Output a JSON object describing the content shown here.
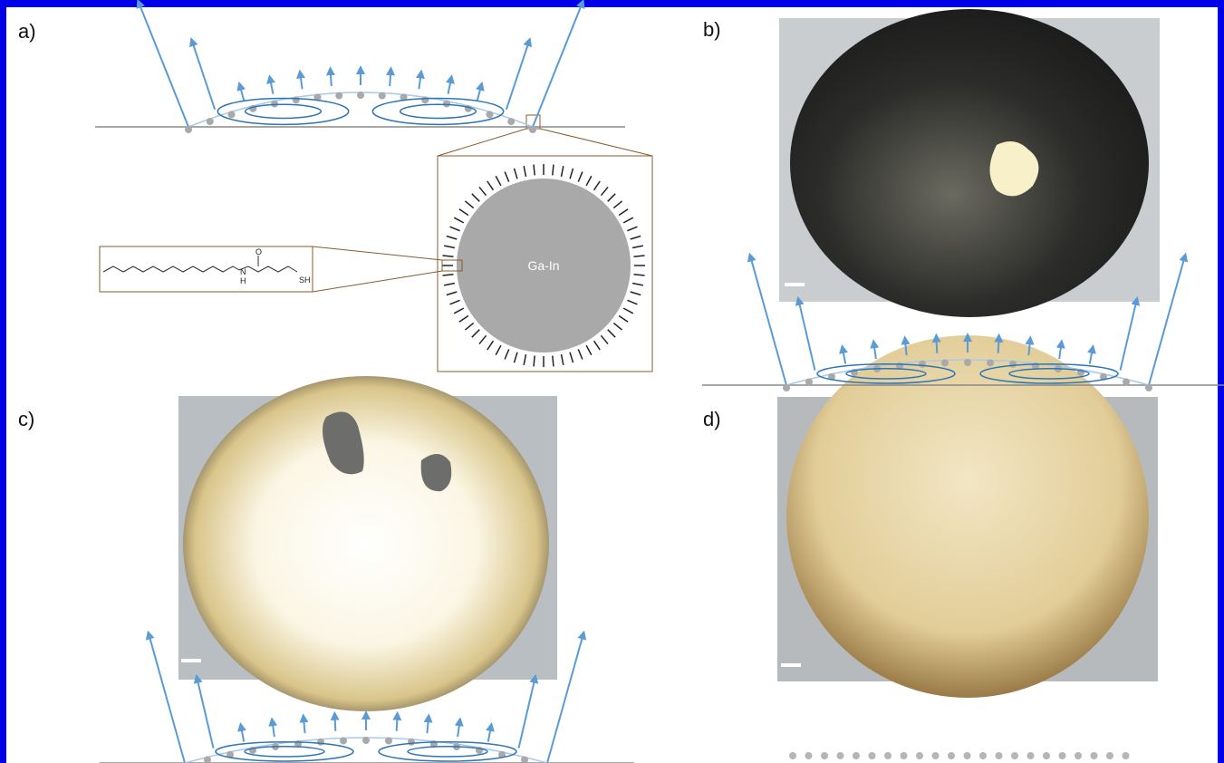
{
  "panels": [
    {
      "label": "a)"
    },
    {
      "label": "b)"
    },
    {
      "label": "c)"
    },
    {
      "label": "d)"
    }
  ],
  "diagram": {
    "core_label": "Ga-In",
    "molecule_atoms": [
      "O",
      "N",
      "H",
      "SH"
    ]
  }
}
